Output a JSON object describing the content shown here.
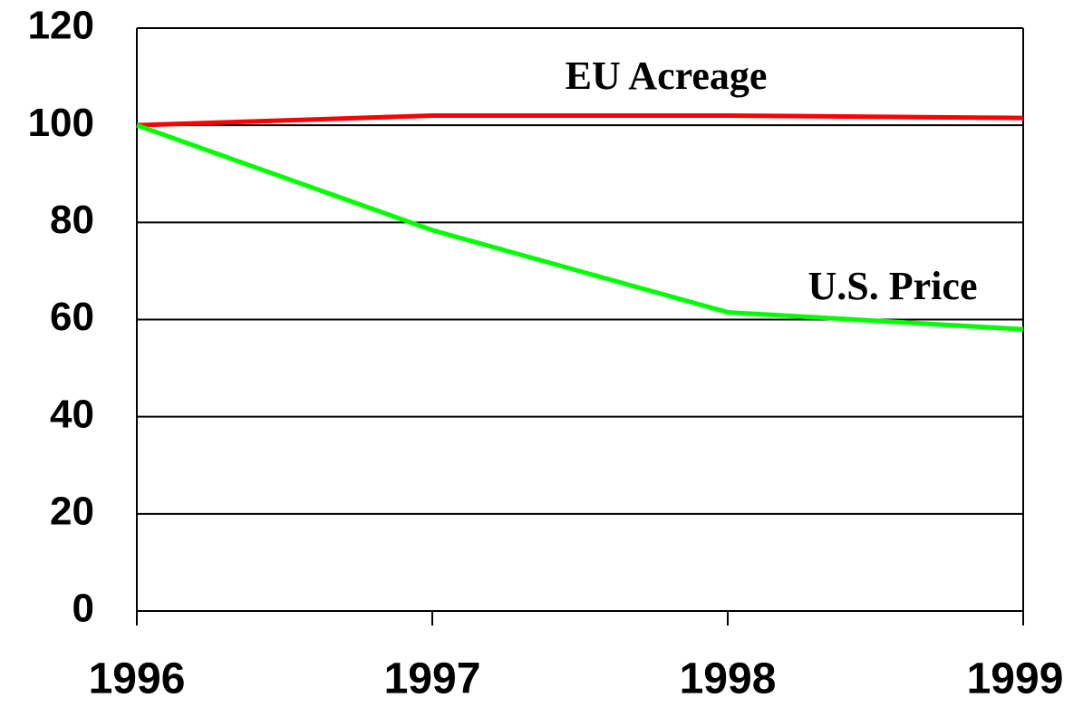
{
  "chart_data": {
    "type": "line",
    "categories": [
      "1996",
      "1997",
      "1998",
      "1999"
    ],
    "series": [
      {
        "name": "EU Acreage",
        "color": "#ff0000",
        "values": [
          100,
          102,
          102,
          101.5
        ]
      },
      {
        "name": "U.S. Price",
        "color": "#00ff00",
        "values": [
          100,
          78.4,
          61.5,
          58
        ]
      }
    ],
    "ylim": [
      0,
      120
    ],
    "yticks": [
      0,
      20,
      40,
      60,
      80,
      100,
      120
    ],
    "grid": true
  }
}
